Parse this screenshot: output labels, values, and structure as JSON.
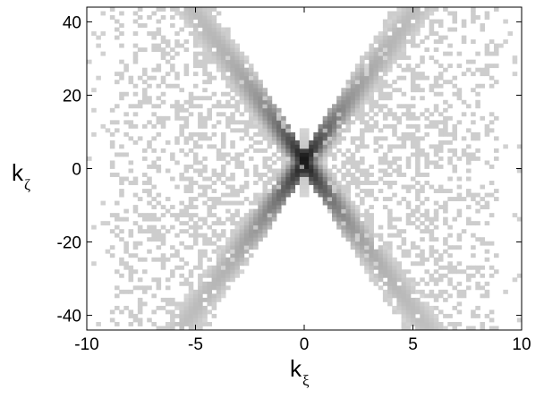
{
  "chart_data": {
    "type": "heatmap",
    "title": "",
    "xlabel": {
      "main": "k",
      "subscript": "ξ"
    },
    "ylabel": {
      "main": "k",
      "subscript": "ζ"
    },
    "xlim": [
      -10,
      10
    ],
    "ylim": [
      -44,
      44
    ],
    "x_ticks": [
      -10,
      -5,
      0,
      5,
      10
    ],
    "x_tick_labels": [
      "-10",
      "-5",
      "0",
      "5",
      "10"
    ],
    "y_ticks": [
      -40,
      -20,
      0,
      20,
      40
    ],
    "y_tick_labels": [
      "-40",
      "-20",
      "0",
      "20",
      "40"
    ],
    "grid": false,
    "colormap": "gray (white = low, black = high)",
    "colors": {
      "low": "#ffffff",
      "light": "#d9d9d9",
      "mid": "#8c8c8c",
      "high": "#1a1a1a"
    },
    "structure": "X-shaped (butterfly) intensity pattern centred at (0, 2); dense dark core along two crossing diagonals through the origin, fading to light grey speckle toward |kξ| ≈ 9; faint vertical streak along kξ = 0",
    "peak": {
      "x": 0,
      "y": 2
    },
    "diagonal_slopes": [
      8,
      -8
    ],
    "outer_extent": {
      "x": 9,
      "y": 44
    }
  }
}
